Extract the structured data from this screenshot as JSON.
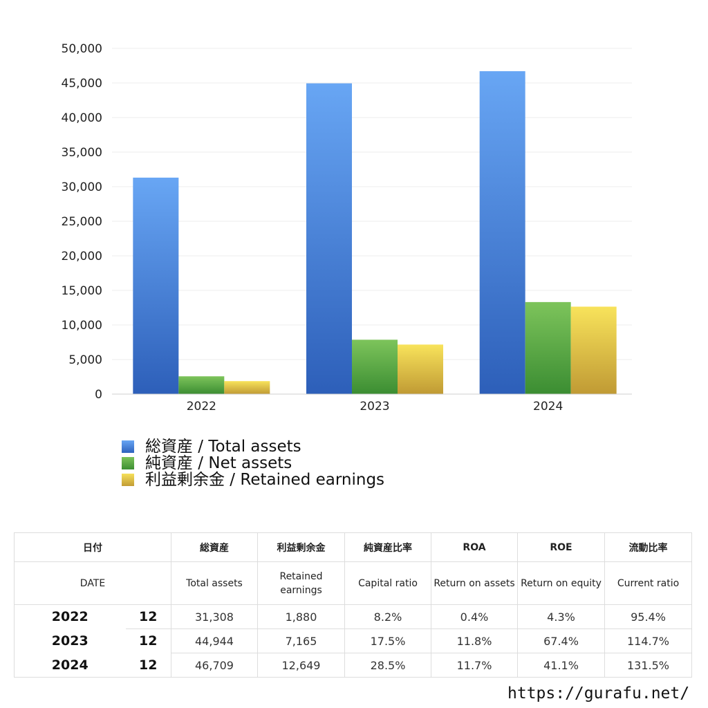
{
  "chart_data": {
    "type": "bar",
    "categories": [
      "2022",
      "2023",
      "2024"
    ],
    "series": [
      {
        "name": "総資産 / Total assets",
        "values": [
          31308,
          44944,
          46709
        ],
        "color": "#4a84d8"
      },
      {
        "name": "純資産 / Net assets",
        "values": [
          2575,
          7865,
          13311
        ],
        "color": "#5aa845"
      },
      {
        "name": "利益剰余金 / Retained earnings",
        "values": [
          1880,
          7165,
          12649
        ],
        "color": "#e2c74a"
      }
    ],
    "y_ticks": [
      "0",
      "5,000",
      "10,000",
      "15,000",
      "20,000",
      "25,000",
      "30,000",
      "35,000",
      "40,000",
      "45,000",
      "50,000"
    ],
    "ylim": [
      0,
      50000
    ],
    "title": "",
    "xlabel": "",
    "ylabel": "",
    "grid": true,
    "legend_position": "bottom-left"
  },
  "table": {
    "headers_ja": [
      "日付",
      "総資産",
      "利益剰余金",
      "純資産比率",
      "ROA",
      "ROE",
      "流動比率"
    ],
    "headers_en": [
      "DATE",
      "Total assets",
      "Retained earnings",
      "Capital ratio",
      "Return on assets",
      "Return on equity",
      "Current ratio"
    ],
    "rows": [
      {
        "year": "2022",
        "month": "12",
        "total_assets": "31,308",
        "retained_earnings": "1,880",
        "capital_ratio": "8.2%",
        "roa": "0.4%",
        "roe": "4.3%",
        "current_ratio": "95.4%"
      },
      {
        "year": "2023",
        "month": "12",
        "total_assets": "44,944",
        "retained_earnings": "7,165",
        "capital_ratio": "17.5%",
        "roa": "11.8%",
        "roe": "67.4%",
        "current_ratio": "114.7%"
      },
      {
        "year": "2024",
        "month": "12",
        "total_assets": "46,709",
        "retained_earnings": "12,649",
        "capital_ratio": "28.5%",
        "roa": "11.7%",
        "roe": "41.1%",
        "current_ratio": "131.5%"
      }
    ]
  },
  "footer": {
    "url": "https://gurafu.net/"
  }
}
